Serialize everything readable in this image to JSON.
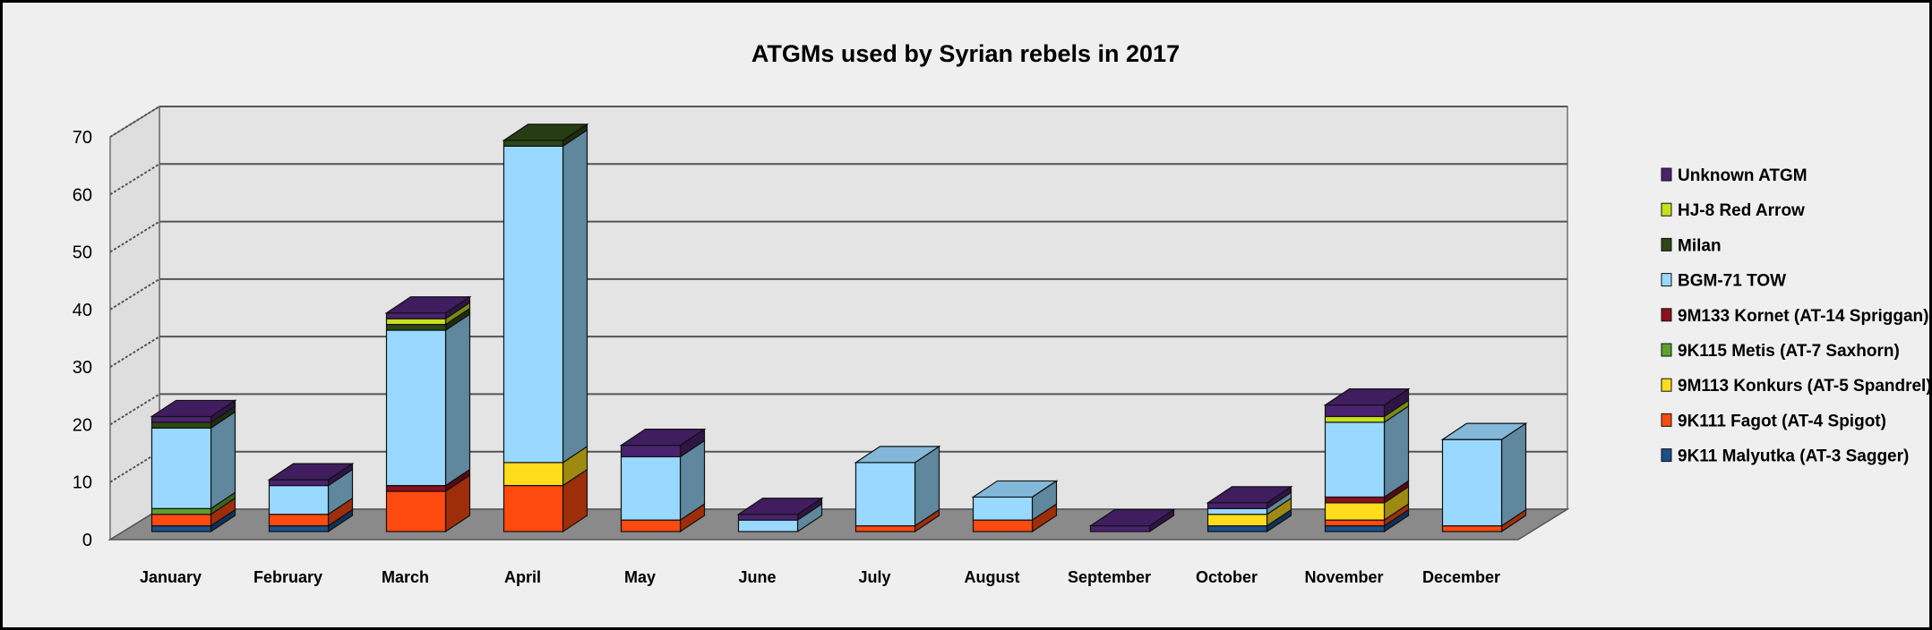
{
  "chart_data": {
    "type": "bar",
    "stacked": true,
    "three_d": true,
    "title": "ATGMs used by Syrian rebels in 2017",
    "xlabel": "",
    "ylabel": "",
    "ylim": [
      0,
      70
    ],
    "yticks": [
      0,
      10,
      20,
      30,
      40,
      50,
      60,
      70
    ],
    "grid": true,
    "legend_position": "right",
    "categories": [
      "January",
      "February",
      "March",
      "April",
      "May",
      "June",
      "July",
      "August",
      "September",
      "October",
      "November",
      "December"
    ],
    "series": [
      {
        "name": "9K11 Malyutka (AT-3 Sagger)",
        "color": "#1c4f8c",
        "values": [
          1,
          1,
          0,
          0,
          0,
          0,
          0,
          0,
          0,
          1,
          1,
          0
        ]
      },
      {
        "name": "9K111 Fagot (AT-4 Spigot)",
        "color": "#ff4a10",
        "values": [
          2,
          2,
          7,
          8,
          2,
          0,
          1,
          2,
          0,
          0,
          1,
          1
        ]
      },
      {
        "name": "9M113 Konkurs (AT-5 Spandrel)",
        "color": "#ffdd1c",
        "values": [
          0,
          0,
          0,
          4,
          0,
          0,
          0,
          0,
          0,
          2,
          3,
          0
        ]
      },
      {
        "name": "9K115 Metis (AT-7 Saxhorn)",
        "color": "#5da02e",
        "values": [
          1,
          0,
          0,
          0,
          0,
          0,
          0,
          0,
          0,
          0,
          0,
          0
        ]
      },
      {
        "name": "9M133 Kornet (AT-14 Spriggan)",
        "color": "#8b0f1e",
        "values": [
          0,
          0,
          1,
          0,
          0,
          0,
          0,
          0,
          0,
          0,
          1,
          0
        ]
      },
      {
        "name": "BGM-71 TOW",
        "color": "#9ad9ff",
        "values": [
          14,
          5,
          27,
          55,
          11,
          2,
          11,
          4,
          0,
          1,
          13,
          15
        ]
      },
      {
        "name": "Milan",
        "color": "#2e4716",
        "values": [
          1,
          0,
          1,
          1,
          0,
          0,
          0,
          0,
          0,
          0,
          0,
          0
        ]
      },
      {
        "name": "HJ-8 Red Arrow",
        "color": "#c7e01c",
        "values": [
          0,
          0,
          1,
          0,
          0,
          0,
          0,
          0,
          0,
          0,
          1,
          0
        ]
      },
      {
        "name": "Unknown ATGM",
        "color": "#4a2270",
        "values": [
          1,
          1,
          1,
          0,
          2,
          1,
          0,
          0,
          1,
          1,
          2,
          0
        ]
      }
    ]
  }
}
